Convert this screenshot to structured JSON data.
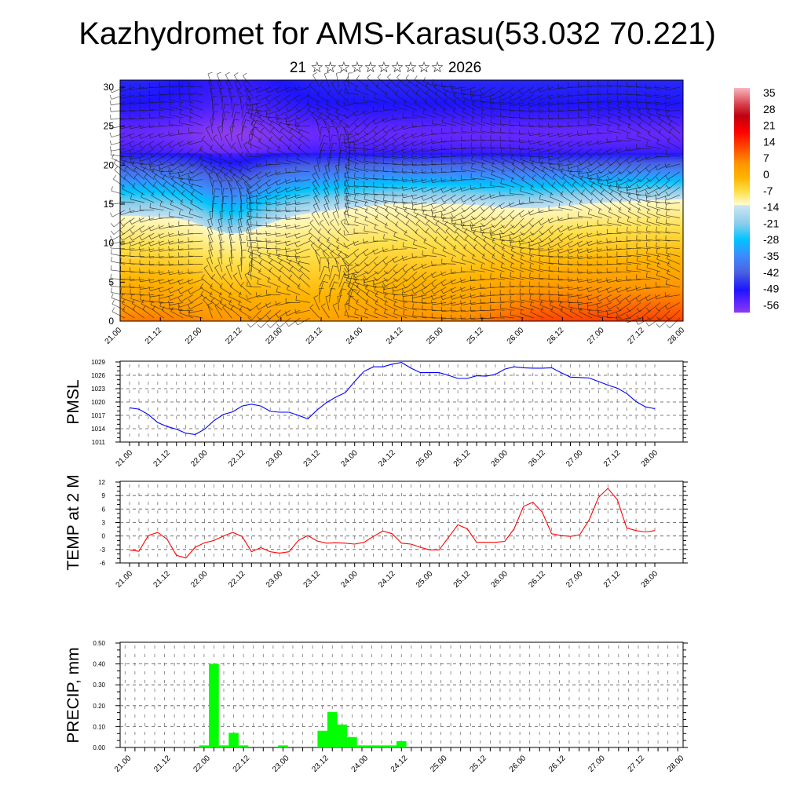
{
  "title": "Kazhydromet for AMS-Karasu(53.032 70.221)",
  "subtitle": "21 ☆☆☆☆☆☆☆☆☆☆ 2026",
  "time_labels": [
    "21.00",
    "21.12",
    "22.00",
    "22.12",
    "23.00",
    "23.12",
    "24.00",
    "24.12",
    "25.00",
    "25.12",
    "26.00",
    "26.12",
    "27.00",
    "27.12",
    "28.00"
  ],
  "chart_data": [
    {
      "type": "heatmap",
      "title": "",
      "xlabel": "",
      "ylabel": "",
      "ylim": [
        0,
        31
      ],
      "yticks": [
        "0",
        "5",
        "10",
        "15",
        "20",
        "25",
        "30"
      ],
      "overlay": "wind barbs",
      "colorbar": {
        "labels": [
          "35",
          "28",
          "21",
          "14",
          "7",
          "0",
          "-7",
          "-14",
          "-21",
          "-28",
          "-35",
          "-42",
          "-49",
          "-56"
        ],
        "stops": [
          {
            "v": 38,
            "c": "#f6b4bc"
          },
          {
            "v": 31,
            "c": "#d8404c"
          },
          {
            "v": 26,
            "c": "#c00010"
          },
          {
            "v": 19,
            "c": "#ff0000"
          },
          {
            "v": 12,
            "c": "#ff4a00"
          },
          {
            "v": 5,
            "c": "#ff9600"
          },
          {
            "v": -1,
            "c": "#ffb400"
          },
          {
            "v": -7,
            "c": "#ffe04a"
          },
          {
            "v": -12.9,
            "c": "#fffcd2"
          },
          {
            "v": -13.1,
            "c": "#cce6f4"
          },
          {
            "v": -21,
            "c": "#8ccdea"
          },
          {
            "v": -28,
            "c": "#00c4ff"
          },
          {
            "v": -35,
            "c": "#3c8cff"
          },
          {
            "v": -42,
            "c": "#4a64e0"
          },
          {
            "v": -50,
            "c": "#1e14ff"
          },
          {
            "v": -56,
            "c": "#6428ff"
          },
          {
            "v": -60,
            "c": "#8c3cf0"
          }
        ]
      }
    },
    {
      "type": "line",
      "ylabel": "PMSL",
      "ylim": [
        1011,
        1029
      ],
      "yticks": [
        "1011",
        "1014",
        "1017",
        "1020",
        "1023",
        "1026",
        "1029"
      ],
      "color": "#0000ff",
      "step_hours": 3,
      "values": [
        1018.7,
        1018.4,
        1017.2,
        1015.4,
        1014.5,
        1013.9,
        1013.0,
        1012.7,
        1013.9,
        1015.8,
        1017.2,
        1017.8,
        1019.1,
        1019.5,
        1019.1,
        1017.9,
        1017.7,
        1017.7,
        1017.0,
        1016.2,
        1018.2,
        1019.9,
        1021.1,
        1022.1,
        1024.6,
        1026.9,
        1027.9,
        1027.9,
        1028.5,
        1028.9,
        1027.6,
        1026.6,
        1026.6,
        1026.6,
        1026.0,
        1025.3,
        1025.3,
        1025.9,
        1025.8,
        1026.2,
        1027.4,
        1027.9,
        1027.7,
        1027.6,
        1027.6,
        1027.7,
        1026.6,
        1025.6,
        1025.5,
        1025.4,
        1024.6,
        1023.8,
        1023.1,
        1021.9,
        1020.1,
        1018.9,
        1018.5
      ]
    },
    {
      "type": "line",
      "ylabel": "TEMP at 2 M",
      "ylim": [
        -6,
        12
      ],
      "yticks": [
        "-6",
        "-3",
        "0",
        "3",
        "6",
        "9",
        "12"
      ],
      "color": "#ff0000",
      "step_hours": 3,
      "values": [
        -3.1,
        -3.4,
        0.1,
        0.8,
        -0.7,
        -4.3,
        -4.9,
        -2.5,
        -1.5,
        -1.0,
        0.0,
        0.8,
        -0.1,
        -3.5,
        -2.6,
        -3.5,
        -3.8,
        -3.5,
        -1.0,
        0.1,
        -1.1,
        -1.6,
        -1.5,
        -1.6,
        -1.8,
        -1.4,
        -0.1,
        1.1,
        0.5,
        -1.6,
        -1.8,
        -2.5,
        -3.1,
        -3.1,
        -0.3,
        2.5,
        1.6,
        -1.4,
        -1.4,
        -1.4,
        -1.2,
        1.6,
        6.6,
        7.5,
        5.3,
        0.5,
        0.1,
        -0.1,
        0.3,
        3.6,
        8.6,
        10.6,
        8.1,
        1.8,
        1.2,
        0.9,
        1.2
      ]
    },
    {
      "type": "bar",
      "ylabel": "PRECIP, mm",
      "ylim": [
        0,
        0.5
      ],
      "yticks": [
        "0.00",
        "0.10",
        "0.20",
        "0.30",
        "0.40",
        "0.50"
      ],
      "color": "#00ff00",
      "step_hours": 3,
      "values": [
        0,
        0,
        0,
        0,
        0,
        0,
        0,
        0,
        0.01,
        0.4,
        0.01,
        0.07,
        0.01,
        0,
        0,
        0,
        0.01,
        0,
        0,
        0,
        0.08,
        0.17,
        0.11,
        0.05,
        0.01,
        0.01,
        0.01,
        0.01,
        0.03,
        0,
        0,
        0,
        0,
        0,
        0,
        0,
        0,
        0,
        0,
        0,
        0,
        0,
        0,
        0,
        0,
        0,
        0,
        0,
        0,
        0,
        0,
        0,
        0,
        0,
        0,
        0,
        0
      ]
    }
  ]
}
